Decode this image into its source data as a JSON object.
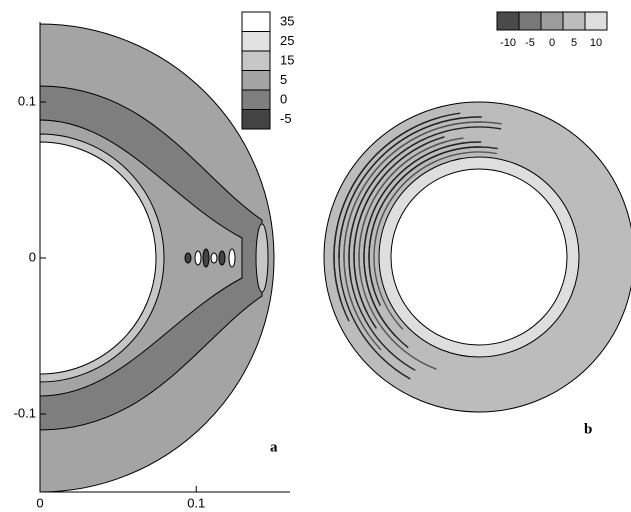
{
  "chart_data": [
    {
      "type": "contour",
      "label": "a",
      "xlim": [
        0,
        0.16
      ],
      "ylim": [
        -0.15,
        0.15
      ],
      "xticks": [
        0,
        0.1
      ],
      "yticks": [
        -0.1,
        0,
        0.1
      ],
      "levels": [
        35,
        25,
        15,
        5,
        0,
        -5
      ],
      "colors": [
        "#ffffff",
        "#e2e2e2",
        "#c6c6c6",
        "#a4a4a4",
        "#7e7e7e",
        "#444444"
      ]
    },
    {
      "type": "contour",
      "label": "b",
      "levels": [
        -10,
        -5,
        0,
        5,
        10
      ],
      "colors": [
        "#4a4a4a",
        "#787878",
        "#9c9c9c",
        "#bcbcbc",
        "#dedede"
      ]
    }
  ]
}
